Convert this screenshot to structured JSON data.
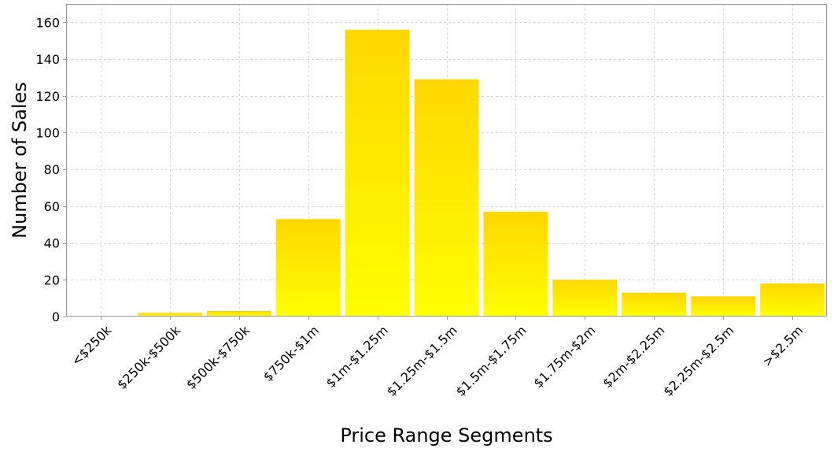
{
  "chart_data": {
    "type": "bar",
    "title": "",
    "xlabel": "Price Range Segments",
    "ylabel": "Number of Sales",
    "categories": [
      "<$250k",
      "$250k-$500k",
      "$500k-$750k",
      "$750k-$1m",
      "$1m-$1.25m",
      "$1.25m-$1.5m",
      "$1.5m-$1.75m",
      "$1.75m-$2m",
      "$2m-$2.25m",
      "$2.25m-$2.5m",
      ">$2.5m"
    ],
    "values": [
      0,
      2,
      3,
      53,
      156,
      129,
      57,
      20,
      13,
      11,
      18
    ],
    "ylim": [
      0,
      170
    ],
    "yticks": [
      0,
      20,
      40,
      60,
      80,
      100,
      120,
      140,
      160
    ],
    "grid": true,
    "legend": "none",
    "bar_colors": {
      "top": "#ffd700",
      "bottom": "#ffff00"
    }
  }
}
